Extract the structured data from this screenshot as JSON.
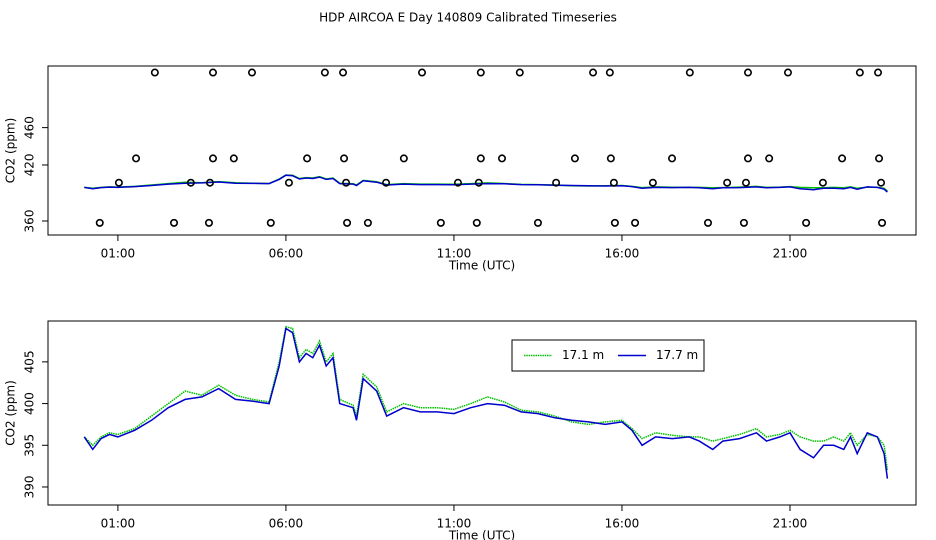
{
  "chart_data": [
    {
      "type": "line",
      "title": "HDP AIRCOA E  Day 140809  Calibrated Timeseries",
      "x_label": "Time (UTC)",
      "y_label": "CO2 (ppm)",
      "xlim": [
        -1.08,
        24.75
      ],
      "ylim": [
        345,
        526
      ],
      "xticks": [
        {
          "value": 1,
          "label": "01:00"
        },
        {
          "value": 6,
          "label": "06:00"
        },
        {
          "value": 11,
          "label": "11:00"
        },
        {
          "value": 16,
          "label": "16:00"
        },
        {
          "value": 21,
          "label": "21:00"
        }
      ],
      "yticks": [
        360,
        420,
        460
      ],
      "series": [
        {
          "color": "#00c000",
          "x": [
            0.0,
            0.25,
            0.5,
            0.75,
            1.0,
            1.5,
            2.0,
            2.5,
            3.0,
            3.5,
            4.0,
            4.5,
            5.0,
            5.5,
            5.8,
            6.0,
            6.2,
            6.4,
            6.6,
            6.8,
            7.0,
            7.2,
            7.4,
            7.6,
            8.0,
            8.1,
            8.3,
            8.7,
            9.0,
            9.5,
            10.0,
            10.5,
            11.0,
            11.5,
            12.0,
            12.5,
            13.0,
            13.5,
            14.0,
            14.5,
            15.0,
            15.5,
            16.0,
            16.3,
            16.6,
            17.0,
            17.5,
            18.0,
            18.3,
            18.7,
            19.0,
            19.5,
            20.0,
            20.3,
            20.7,
            21.0,
            21.3,
            21.7,
            22.0,
            22.3,
            22.6,
            22.8,
            23.0,
            23.3,
            23.6,
            23.8,
            23.9
          ],
          "values": [
            396.0,
            395.0,
            396.0,
            396.5,
            396.3,
            397.0,
            398.5,
            400.0,
            401.5,
            401.0,
            402.2,
            401.0,
            400.5,
            400.2,
            405.0,
            409.2,
            409.0,
            405.5,
            406.5,
            406.0,
            407.5,
            405.0,
            406.0,
            400.5,
            399.8,
            398.5,
            403.5,
            402.0,
            399.0,
            400.0,
            399.5,
            399.5,
            399.3,
            400.0,
            400.8,
            400.2,
            399.2,
            399.0,
            398.5,
            397.8,
            397.5,
            397.8,
            398.0,
            397.0,
            395.8,
            396.5,
            396.2,
            396.0,
            396.0,
            395.5,
            395.8,
            396.3,
            397.0,
            396.0,
            396.3,
            396.8,
            396.0,
            395.5,
            395.5,
            396.0,
            395.5,
            396.5,
            395.0,
            396.3,
            396.0,
            395.0,
            392.0
          ]
        },
        {
          "color": "#0000cc",
          "x": [
            0.0,
            0.25,
            0.5,
            0.75,
            1.0,
            1.5,
            2.0,
            2.5,
            3.0,
            3.5,
            4.0,
            4.5,
            5.0,
            5.5,
            5.8,
            6.0,
            6.2,
            6.4,
            6.6,
            6.8,
            7.0,
            7.2,
            7.4,
            7.6,
            8.0,
            8.1,
            8.3,
            8.7,
            9.0,
            9.5,
            10.0,
            10.5,
            11.0,
            11.5,
            12.0,
            12.5,
            13.0,
            13.5,
            14.0,
            14.5,
            15.0,
            15.5,
            16.0,
            16.3,
            16.6,
            17.0,
            17.5,
            18.0,
            18.3,
            18.7,
            19.0,
            19.5,
            20.0,
            20.3,
            20.7,
            21.0,
            21.3,
            21.7,
            22.0,
            22.3,
            22.6,
            22.8,
            23.0,
            23.3,
            23.6,
            23.8,
            23.9
          ],
          "values": [
            396.0,
            394.5,
            395.8,
            396.3,
            396.0,
            396.8,
            398.0,
            399.5,
            400.5,
            400.8,
            401.8,
            400.5,
            400.3,
            400.0,
            404.5,
            409.0,
            408.5,
            405.0,
            406.0,
            405.5,
            407.0,
            404.5,
            405.5,
            400.0,
            399.5,
            398.0,
            403.0,
            401.5,
            398.5,
            399.5,
            399.0,
            399.0,
            398.8,
            399.5,
            400.0,
            399.8,
            399.0,
            398.8,
            398.3,
            398.0,
            397.8,
            397.5,
            397.8,
            396.8,
            395.0,
            396.0,
            395.8,
            396.0,
            395.5,
            394.5,
            395.5,
            395.8,
            396.5,
            395.5,
            396.0,
            396.5,
            394.5,
            393.5,
            395.0,
            395.0,
            394.5,
            396.0,
            394.0,
            396.5,
            396.0,
            394.0,
            391.0
          ]
        },
        {
          "color": "#000000",
          "marker": "circle",
          "x": [
            2.1,
            3.83,
            4.99,
            7.16,
            7.7,
            10.05,
            11.8,
            12.96,
            15.14,
            15.64,
            18.02,
            19.75,
            20.94,
            23.08,
            23.62,
            1.54,
            3.83,
            4.45,
            6.63,
            7.73,
            9.51,
            11.8,
            12.43,
            14.6,
            15.67,
            17.49,
            19.75,
            20.38,
            22.55,
            23.65,
            1.03,
            3.17,
            3.74,
            6.09,
            7.79,
            8.98,
            11.12,
            11.74,
            14.04,
            15.76,
            16.92,
            19.13,
            19.69,
            21.98,
            23.71,
            0.46,
            2.67,
            3.71,
            5.55,
            7.82,
            8.44,
            10.61,
            11.68,
            13.5,
            15.79,
            16.39,
            18.56,
            19.63,
            21.48,
            23.74
          ],
          "values": [
            519,
            519,
            519,
            519,
            519,
            519,
            519,
            519,
            519,
            519,
            519,
            519,
            519,
            519,
            519,
            427,
            427,
            427,
            427,
            427,
            427,
            427,
            427,
            427,
            427,
            427,
            427,
            427,
            427,
            427,
            401,
            401,
            401,
            401,
            401,
            401,
            401,
            401,
            401,
            401,
            401,
            401,
            401,
            401,
            401,
            358,
            358,
            358,
            358,
            358,
            358,
            358,
            358,
            358,
            358,
            358,
            358,
            358,
            358,
            358
          ]
        }
      ]
    },
    {
      "type": "line",
      "x_label": "Time (UTC)",
      "y_label": "CO2 (ppm)",
      "xlim": [
        -1.08,
        24.75
      ],
      "ylim": [
        387.84,
        409.9
      ],
      "xticks": [
        {
          "value": 1,
          "label": "01:00"
        },
        {
          "value": 6,
          "label": "06:00"
        },
        {
          "value": 11,
          "label": "11:00"
        },
        {
          "value": 16,
          "label": "16:00"
        },
        {
          "value": 21,
          "label": "21:00"
        }
      ],
      "yticks": [
        390,
        395,
        400,
        405
      ],
      "legend": "top-right",
      "series": [
        {
          "name": "17.1 m",
          "color": "#00c000",
          "dash": true,
          "x": [
            0.0,
            0.25,
            0.5,
            0.75,
            1.0,
            1.5,
            2.0,
            2.5,
            3.0,
            3.5,
            4.0,
            4.5,
            5.0,
            5.5,
            5.8,
            6.0,
            6.2,
            6.4,
            6.6,
            6.8,
            7.0,
            7.2,
            7.4,
            7.6,
            8.0,
            8.1,
            8.3,
            8.7,
            9.0,
            9.5,
            10.0,
            10.5,
            11.0,
            11.5,
            12.0,
            12.5,
            13.0,
            13.5,
            14.0,
            14.5,
            15.0,
            15.5,
            16.0,
            16.3,
            16.6,
            17.0,
            17.5,
            18.0,
            18.3,
            18.7,
            19.0,
            19.5,
            20.0,
            20.3,
            20.7,
            21.0,
            21.3,
            21.7,
            22.0,
            22.3,
            22.6,
            22.8,
            23.0,
            23.3,
            23.6,
            23.8,
            23.9
          ],
          "values": [
            396.0,
            395.0,
            396.0,
            396.5,
            396.3,
            397.0,
            398.5,
            400.0,
            401.5,
            401.0,
            402.2,
            401.0,
            400.5,
            400.2,
            405.0,
            409.2,
            409.0,
            405.5,
            406.5,
            406.0,
            407.5,
            405.0,
            406.0,
            400.5,
            399.8,
            398.5,
            403.5,
            402.0,
            399.0,
            400.0,
            399.5,
            399.5,
            399.3,
            400.0,
            400.8,
            400.2,
            399.2,
            399.0,
            398.5,
            397.8,
            397.5,
            397.8,
            398.0,
            397.0,
            395.8,
            396.5,
            396.2,
            396.0,
            396.0,
            395.5,
            395.8,
            396.3,
            397.0,
            396.0,
            396.3,
            396.8,
            396.0,
            395.5,
            395.5,
            396.0,
            395.5,
            396.5,
            395.0,
            396.3,
            396.0,
            395.0,
            392.0
          ]
        },
        {
          "name": "17.7 m",
          "color": "#0000cc",
          "x": [
            0.0,
            0.25,
            0.5,
            0.75,
            1.0,
            1.5,
            2.0,
            2.5,
            3.0,
            3.5,
            4.0,
            4.5,
            5.0,
            5.5,
            5.8,
            6.0,
            6.2,
            6.4,
            6.6,
            6.8,
            7.0,
            7.2,
            7.4,
            7.6,
            8.0,
            8.1,
            8.3,
            8.7,
            9.0,
            9.5,
            10.0,
            10.5,
            11.0,
            11.5,
            12.0,
            12.5,
            13.0,
            13.5,
            14.0,
            14.5,
            15.0,
            15.5,
            16.0,
            16.3,
            16.6,
            17.0,
            17.5,
            18.0,
            18.3,
            18.7,
            19.0,
            19.5,
            20.0,
            20.3,
            20.7,
            21.0,
            21.3,
            21.7,
            22.0,
            22.3,
            22.6,
            22.8,
            23.0,
            23.3,
            23.6,
            23.8,
            23.9
          ],
          "values": [
            396.0,
            394.5,
            395.8,
            396.3,
            396.0,
            396.8,
            398.0,
            399.5,
            400.5,
            400.8,
            401.8,
            400.5,
            400.3,
            400.0,
            404.5,
            409.0,
            408.5,
            405.0,
            406.0,
            405.5,
            407.0,
            404.5,
            405.5,
            400.0,
            399.5,
            398.0,
            403.0,
            401.5,
            398.5,
            399.5,
            399.0,
            399.0,
            398.8,
            399.5,
            400.0,
            399.8,
            399.0,
            398.8,
            398.3,
            398.0,
            397.8,
            397.5,
            397.8,
            396.8,
            395.0,
            396.0,
            395.8,
            396.0,
            395.5,
            394.5,
            395.5,
            395.8,
            396.5,
            395.5,
            396.0,
            396.5,
            394.5,
            393.5,
            395.0,
            395.0,
            394.5,
            396.0,
            394.0,
            396.5,
            396.0,
            394.0,
            391.0
          ]
        }
      ]
    }
  ]
}
